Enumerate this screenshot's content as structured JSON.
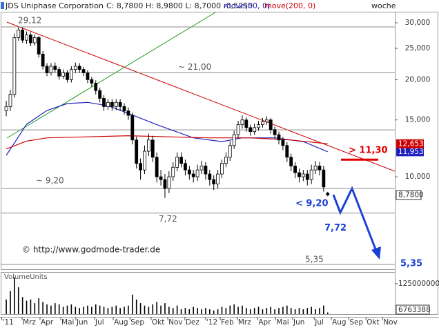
{
  "chart_data": [
    {
      "type": "candlestick",
      "title": "JDS Uniphase Corporation",
      "quote": "C: 8,7800  H: 8,9800  L: 8,7000  -0,5250",
      "periodicity": "woche",
      "source": "© http://www.godmode-trader.de",
      "log_scale": true,
      "up_color": "#ffffff",
      "down_color": "#000000",
      "xlim": [
        -1.2,
        95.5
      ],
      "xticks": [
        {
          "value": -1.1,
          "label": "'11"
        },
        {
          "value": 3.9,
          "label": "Mrz"
        },
        {
          "value": 8.3,
          "label": "Apr"
        },
        {
          "value": 13.4,
          "label": "Mai"
        },
        {
          "value": 17.1,
          "label": "Jun"
        },
        {
          "value": 21.7,
          "label": "Jul"
        },
        {
          "value": 26.3,
          "label": "Aug"
        },
        {
          "value": 30.4,
          "label": "Sep"
        },
        {
          "value": 35.6,
          "label": "Okt"
        },
        {
          "value": 39.7,
          "label": "Nov"
        },
        {
          "value": 43.9,
          "label": "Dez"
        },
        {
          "value": 49.0,
          "label": "'12"
        },
        {
          "value": 52.6,
          "label": "Feb"
        },
        {
          "value": 56.8,
          "label": "Mrz"
        },
        {
          "value": 61.8,
          "label": "Apr"
        },
        {
          "value": 66.2,
          "label": "Mai"
        },
        {
          "value": 70.4,
          "label": "Jun"
        },
        {
          "value": 75.7,
          "label": "Jul"
        },
        {
          "value": 79.9,
          "label": "Aug"
        },
        {
          "value": 84.2,
          "label": "Sep"
        },
        {
          "value": 88.4,
          "label": "Okt"
        },
        {
          "value": 92.5,
          "label": "Nov"
        }
      ],
      "ylim": [
        5.17,
        32.3
      ],
      "yticks": [
        {
          "value": 30,
          "label": "30,000"
        },
        {
          "value": 25,
          "label": "25,000"
        },
        {
          "value": 20,
          "label": "20,000"
        },
        {
          "value": 15,
          "label": "15,000"
        },
        {
          "value": 10,
          "label": "10,000"
        }
      ],
      "open": [
        16,
        16.5,
        18,
        27,
        28.5,
        26.5,
        27.5,
        26,
        27,
        24,
        22,
        21,
        22,
        21.5,
        20.5,
        21,
        20,
        21.5,
        22,
        21.5,
        21,
        20,
        19.5,
        18.5,
        17.5,
        16.5,
        17,
        16.5,
        17,
        16.5,
        16,
        15.5,
        13,
        11,
        10.5,
        12,
        13,
        11.5,
        10,
        9.8,
        9.2,
        10,
        10.7,
        11.5,
        11,
        10.5,
        10.2,
        10,
        10.5,
        10.8,
        10.2,
        9.8,
        9.5,
        10.2,
        11,
        11.5,
        12.5,
        13.5,
        14.5,
        15,
        14.2,
        13.8,
        14.2,
        14.5,
        14.8,
        15,
        14,
        13.5,
        13,
        12.5,
        11.5,
        10.8,
        10.3,
        10,
        10.2,
        9.8,
        10.5,
        10.8,
        10.5,
        8.9
      ],
      "high": [
        17.2,
        18.6,
        27.8,
        29.12,
        29.0,
        28.2,
        28.0,
        27.6,
        27.3,
        24.5,
        22.5,
        22.5,
        22.6,
        21.9,
        21.5,
        21.4,
        22.0,
        22.6,
        22.5,
        21.9,
        21.4,
        20.4,
        19.9,
        18.9,
        17.9,
        17.4,
        17.4,
        17.4,
        17.4,
        16.9,
        16.4,
        15.8,
        13.3,
        11.4,
        12.5,
        13.6,
        13.4,
        11.9,
        10.5,
        10.2,
        10.4,
        11.1,
        11.9,
        11.9,
        11.3,
        10.8,
        10.5,
        10.9,
        11.2,
        11.1,
        10.5,
        10.1,
        10.5,
        11.3,
        11.9,
        12.9,
        13.9,
        14.9,
        15.5,
        15.3,
        14.5,
        14.6,
        14.9,
        15.2,
        15.4,
        15.2,
        14.3,
        13.8,
        13.3,
        12.8,
        11.8,
        11.1,
        10.6,
        10.5,
        10.5,
        10.9,
        11.2,
        11.1,
        10.8,
        8.98
      ],
      "low": [
        15.4,
        16.0,
        17.6,
        26.4,
        26.0,
        25.8,
        25.4,
        25.5,
        23.4,
        21.5,
        20.5,
        20.6,
        21.0,
        20.0,
        20.1,
        19.6,
        19.6,
        21.0,
        21.0,
        20.5,
        19.5,
        19.0,
        18.0,
        17.0,
        16.0,
        16.1,
        16.0,
        16.1,
        16.0,
        15.6,
        15.0,
        12.6,
        10.6,
        9.8,
        10.2,
        11.6,
        11.1,
        9.6,
        9.4,
        8.6,
        8.9,
        9.7,
        10.4,
        10.7,
        10.1,
        9.8,
        9.6,
        9.7,
        10.2,
        9.8,
        9.4,
        9.1,
        9.2,
        9.9,
        10.7,
        11.2,
        12.2,
        13.2,
        14.1,
        13.8,
        13.4,
        13.5,
        13.9,
        14.2,
        14.5,
        13.6,
        13.1,
        12.6,
        12.1,
        11.1,
        10.4,
        9.9,
        9.6,
        9.7,
        9.4,
        9.5,
        10.2,
        10.1,
        9.0,
        8.7
      ],
      "close": [
        16.5,
        18,
        27,
        28.5,
        26.5,
        27.5,
        26,
        27,
        24,
        22,
        21,
        22,
        21.5,
        20.5,
        21,
        20,
        21.5,
        22,
        21.5,
        21,
        20,
        19.5,
        18.5,
        17.5,
        16.5,
        17,
        16.5,
        17,
        16.5,
        16,
        15.5,
        13,
        11,
        10.5,
        12,
        13,
        11.5,
        10,
        9.8,
        9.2,
        10,
        10.7,
        11.5,
        11,
        10.5,
        10.2,
        10,
        10.5,
        10.8,
        10.2,
        9.8,
        9.5,
        10.2,
        11,
        11.5,
        12.5,
        13.5,
        14.5,
        15,
        14.2,
        13.8,
        14.2,
        14.5,
        14.8,
        15,
        14,
        13.5,
        13,
        12.5,
        11.5,
        10.8,
        10.3,
        10,
        10.2,
        9.8,
        10.5,
        10.8,
        10.5,
        9.3,
        8.78
      ],
      "close_value_label": "8,7800",
      "moving_averages": [
        {
          "name": "move(50, 0)",
          "color": "#1f1fbf",
          "x": [
            0,
            5,
            10,
            15,
            20,
            25,
            29,
            37,
            46,
            53,
            58,
            66,
            73,
            79
          ],
          "values": [
            11.65,
            14.54,
            16.05,
            16.86,
            17.0,
            16.6,
            15.9,
            14.5,
            13.2,
            12.85,
            13.2,
            13.2,
            12.85,
            11.9534
          ],
          "value_label": "11,9534"
        },
        {
          "name": "move(200, 0)",
          "color": "#cc0000",
          "x": [
            0,
            5,
            10,
            20,
            30,
            40,
            50,
            60,
            70,
            79
          ],
          "values": [
            12.2,
            12.9,
            13.2,
            13.3,
            13.4,
            13.3,
            13.2,
            13.2,
            13.0,
            12.6537
          ],
          "value_label": "12,6537"
        }
      ],
      "levels": [
        29.12,
        21.0,
        13.97,
        9.2,
        7.72,
        5.35
      ],
      "level_labels": [
        "29,12",
        "~ 21,00",
        null,
        "~ 9,20",
        "7,72",
        "5,35"
      ],
      "annotations": [
        {
          "text": "> 11,30",
          "value": 11.3,
          "color": "#e00000"
        },
        {
          "text": "< 9,20",
          "value": 9.2,
          "color": "#1a3fd6"
        },
        {
          "text": "7,72",
          "value": 7.72,
          "color": "#1a3fd6"
        },
        {
          "text": "5,35",
          "value": 5.35,
          "color": "#1a3fd6"
        }
      ]
    },
    {
      "type": "bar",
      "title": "VolumeUnits",
      "color": "#000000",
      "ylim": [
        0,
        170000000
      ],
      "yticks": [
        125000000
      ],
      "values": [
        60000000,
        95000000,
        150000000,
        110000000,
        70000000,
        55000000,
        60000000,
        45000000,
        65000000,
        50000000,
        40000000,
        35000000,
        45000000,
        40000000,
        30000000,
        35000000,
        40000000,
        30000000,
        25000000,
        30000000,
        35000000,
        30000000,
        40000000,
        35000000,
        30000000,
        25000000,
        30000000,
        35000000,
        25000000,
        30000000,
        35000000,
        80000000,
        60000000,
        45000000,
        35000000,
        30000000,
        40000000,
        50000000,
        35000000,
        45000000,
        30000000,
        25000000,
        35000000,
        20000000,
        25000000,
        20000000,
        30000000,
        25000000,
        20000000,
        25000000,
        20000000,
        15000000,
        20000000,
        30000000,
        25000000,
        35000000,
        40000000,
        30000000,
        35000000,
        25000000,
        20000000,
        25000000,
        30000000,
        20000000,
        25000000,
        30000000,
        20000000,
        25000000,
        30000000,
        35000000,
        25000000,
        20000000,
        25000000,
        20000000,
        25000000,
        30000000,
        20000000,
        25000000,
        35000000,
        6763388
      ]
    }
  ]
}
